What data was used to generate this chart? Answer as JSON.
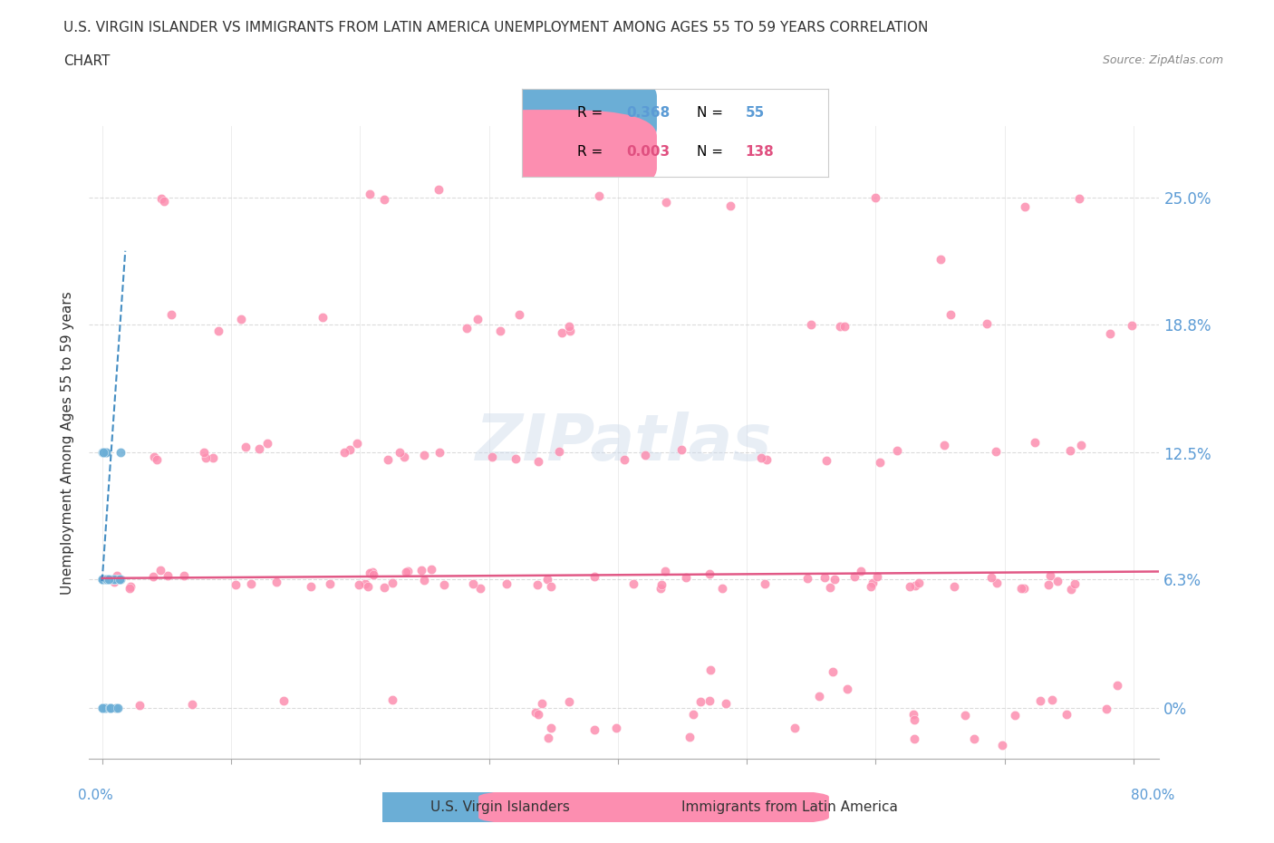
{
  "title_line1": "U.S. VIRGIN ISLANDER VS IMMIGRANTS FROM LATIN AMERICA UNEMPLOYMENT AMONG AGES 55 TO 59 YEARS CORRELATION",
  "title_line2": "CHART",
  "source": "Source: ZipAtlas.com",
  "ylabel": "Unemployment Among Ages 55 to 59 years",
  "background_color": "#ffffff",
  "watermark": "ZIPatlas",
  "legend_R1": "0.368",
  "legend_N1": "55",
  "legend_R2": "0.003",
  "legend_N2": "138",
  "color_blue": "#6baed6",
  "color_pink": "#fc8eb0",
  "color_trendline_blue": "#3182bd",
  "color_trendline_pink": "#e05080",
  "ytick_vals": [
    0.0,
    0.063,
    0.125,
    0.188,
    0.25
  ],
  "ytick_labels": [
    "0%",
    "6.3%",
    "12.5%",
    "18.8%",
    "25.0%"
  ],
  "xtick_vals": [
    0.0,
    0.1,
    0.2,
    0.3,
    0.4,
    0.5,
    0.6,
    0.7,
    0.8
  ],
  "xlim": [
    -0.01,
    0.82
  ],
  "ylim": [
    -0.025,
    0.285
  ]
}
